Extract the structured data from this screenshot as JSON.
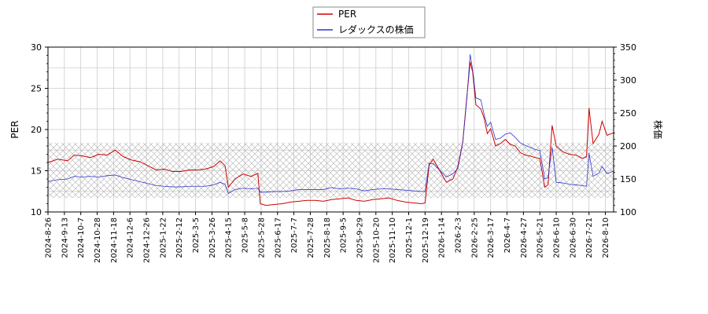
{
  "chart_data": {
    "type": "line",
    "title": "",
    "legend": {
      "placement": "top-center",
      "entries": [
        {
          "label": "PER",
          "color": "#cc0000"
        },
        {
          "label": "レダックスの株価",
          "color": "#3333cc"
        }
      ]
    },
    "y_left": {
      "label": "PER",
      "range": [
        10,
        30
      ],
      "ticks": [
        10,
        15,
        20,
        25,
        30
      ]
    },
    "y_right": {
      "label": "株価",
      "range": [
        100,
        350
      ],
      "ticks": [
        100,
        150,
        200,
        250,
        300,
        350
      ]
    },
    "x_ticks": [
      "2024-8-26",
      "2024-9-13",
      "2024-10-7",
      "2024-10-28",
      "2024-11-18",
      "2024-12-6",
      "2024-12-26",
      "2025-1-22",
      "2025-2-12",
      "2025-3-5",
      "2025-3-26",
      "2025-4-15",
      "2025-5-8",
      "2025-5-28",
      "2025-6-17",
      "2025-7-7",
      "2025-7-28",
      "2025-8-18",
      "2025-9-5",
      "2025-9-29",
      "2025-10-20",
      "2025-11-10",
      "2025-12-1",
      "2025-12-19",
      "2026-1-14",
      "2026-2-3",
      "2026-2-25",
      "2026-3-17",
      "2026-4-7",
      "2026-4-27",
      "2026-5-21",
      "2026-6-10",
      "2026-6-30",
      "2026-7-21",
      "2026-8-10"
    ],
    "grid": true,
    "band": {
      "y_from": 11.7,
      "y_to": 18.4,
      "pattern": "crosshatch",
      "color": "#b0b0b0"
    },
    "series": [
      {
        "name": "PER",
        "color": "#cc0000",
        "axis": "left",
        "points": [
          [
            0,
            16.0
          ],
          [
            0.6,
            16.4
          ],
          [
            1.2,
            16.2
          ],
          [
            1.6,
            16.9
          ],
          [
            2.1,
            16.8
          ],
          [
            2.6,
            16.6
          ],
          [
            3.1,
            17.0
          ],
          [
            3.6,
            16.9
          ],
          [
            4.1,
            17.5
          ],
          [
            4.6,
            16.7
          ],
          [
            5.1,
            16.3
          ],
          [
            5.6,
            16.1
          ],
          [
            6.1,
            15.6
          ],
          [
            6.6,
            15.1
          ],
          [
            7.1,
            15.2
          ],
          [
            7.6,
            14.9
          ],
          [
            8.1,
            14.9
          ],
          [
            8.6,
            15.1
          ],
          [
            9.1,
            15.1
          ],
          [
            9.6,
            15.2
          ],
          [
            10.1,
            15.5
          ],
          [
            10.5,
            16.2
          ],
          [
            10.8,
            15.6
          ],
          [
            11.0,
            13.0
          ],
          [
            11.4,
            14.0
          ],
          [
            11.9,
            14.6
          ],
          [
            12.4,
            14.3
          ],
          [
            12.8,
            14.7
          ],
          [
            12.95,
            11.0
          ],
          [
            13.3,
            10.8
          ],
          [
            13.8,
            10.9
          ],
          [
            14.3,
            11.0
          ],
          [
            14.8,
            11.2
          ],
          [
            15.3,
            11.3
          ],
          [
            15.8,
            11.4
          ],
          [
            16.3,
            11.4
          ],
          [
            16.8,
            11.3
          ],
          [
            17.3,
            11.5
          ],
          [
            17.8,
            11.6
          ],
          [
            18.3,
            11.7
          ],
          [
            18.8,
            11.4
          ],
          [
            19.3,
            11.3
          ],
          [
            19.8,
            11.5
          ],
          [
            20.3,
            11.6
          ],
          [
            20.8,
            11.7
          ],
          [
            21.3,
            11.4
          ],
          [
            21.8,
            11.2
          ],
          [
            22.3,
            11.1
          ],
          [
            22.8,
            11.0
          ],
          [
            23.0,
            11.1
          ],
          [
            23.25,
            15.7
          ],
          [
            23.5,
            16.4
          ],
          [
            23.9,
            15.0
          ],
          [
            24.3,
            13.6
          ],
          [
            24.7,
            14.0
          ],
          [
            25.0,
            15.5
          ],
          [
            25.3,
            18.5
          ],
          [
            25.55,
            24.0
          ],
          [
            25.75,
            28.2
          ],
          [
            25.9,
            27.0
          ],
          [
            26.1,
            23.0
          ],
          [
            26.4,
            22.5
          ],
          [
            26.6,
            21.4
          ],
          [
            26.8,
            19.5
          ],
          [
            27.0,
            20.1
          ],
          [
            27.3,
            18.0
          ],
          [
            27.6,
            18.3
          ],
          [
            27.9,
            18.8
          ],
          [
            28.2,
            18.2
          ],
          [
            28.5,
            18.0
          ],
          [
            28.8,
            17.2
          ],
          [
            29.1,
            16.9
          ],
          [
            29.4,
            16.8
          ],
          [
            29.7,
            16.6
          ],
          [
            30.0,
            16.5
          ],
          [
            30.3,
            13.0
          ],
          [
            30.5,
            13.3
          ],
          [
            30.75,
            20.5
          ],
          [
            31.0,
            18.0
          ],
          [
            31.4,
            17.3
          ],
          [
            31.8,
            17.0
          ],
          [
            32.2,
            16.9
          ],
          [
            32.6,
            16.5
          ],
          [
            32.85,
            16.7
          ],
          [
            33.0,
            22.6
          ],
          [
            33.25,
            18.3
          ],
          [
            33.6,
            19.4
          ],
          [
            33.8,
            21.0
          ],
          [
            34.1,
            19.3
          ],
          [
            34.5,
            19.6
          ],
          [
            34.9,
            20.2
          ],
          [
            35.2,
            20.3
          ],
          [
            35.4,
            19.4
          ],
          [
            35.55,
            19.3
          ]
        ]
      },
      {
        "name": "レダックスの株価",
        "color": "#3333cc",
        "axis": "right",
        "points": [
          [
            0,
            146
          ],
          [
            0.6,
            149
          ],
          [
            1.2,
            150
          ],
          [
            1.6,
            154
          ],
          [
            2.1,
            153
          ],
          [
            2.6,
            154
          ],
          [
            3.1,
            153
          ],
          [
            3.6,
            155
          ],
          [
            4.1,
            156
          ],
          [
            4.6,
            152
          ],
          [
            5.1,
            149
          ],
          [
            5.6,
            146
          ],
          [
            6.1,
            143
          ],
          [
            6.6,
            140
          ],
          [
            7.1,
            139
          ],
          [
            7.6,
            138
          ],
          [
            8.1,
            138
          ],
          [
            8.6,
            139
          ],
          [
            9.1,
            139
          ],
          [
            9.6,
            139
          ],
          [
            10.1,
            141
          ],
          [
            10.5,
            145
          ],
          [
            10.8,
            142
          ],
          [
            11.0,
            128
          ],
          [
            11.4,
            134
          ],
          [
            11.9,
            136
          ],
          [
            12.4,
            135
          ],
          [
            12.8,
            136
          ],
          [
            12.95,
            130
          ],
          [
            13.3,
            130
          ],
          [
            13.8,
            131
          ],
          [
            14.3,
            131
          ],
          [
            14.8,
            132
          ],
          [
            15.3,
            134
          ],
          [
            15.8,
            134
          ],
          [
            16.3,
            134
          ],
          [
            16.8,
            134
          ],
          [
            17.3,
            137
          ],
          [
            17.8,
            135
          ],
          [
            18.3,
            136
          ],
          [
            18.8,
            135
          ],
          [
            19.3,
            132
          ],
          [
            19.8,
            134
          ],
          [
            20.3,
            135
          ],
          [
            20.8,
            135
          ],
          [
            21.3,
            134
          ],
          [
            21.8,
            133
          ],
          [
            22.3,
            132
          ],
          [
            22.8,
            131
          ],
          [
            23.0,
            131
          ],
          [
            23.25,
            174
          ],
          [
            23.5,
            173
          ],
          [
            23.9,
            163
          ],
          [
            24.3,
            153
          ],
          [
            24.7,
            158
          ],
          [
            25.0,
            166
          ],
          [
            25.3,
            205
          ],
          [
            25.55,
            272
          ],
          [
            25.75,
            339
          ],
          [
            25.9,
            316
          ],
          [
            26.1,
            273
          ],
          [
            26.4,
            270
          ],
          [
            26.6,
            248
          ],
          [
            26.8,
            230
          ],
          [
            27.0,
            236
          ],
          [
            27.3,
            210
          ],
          [
            27.6,
            212
          ],
          [
            27.9,
            218
          ],
          [
            28.2,
            220
          ],
          [
            28.5,
            213
          ],
          [
            28.8,
            205
          ],
          [
            29.1,
            201
          ],
          [
            29.4,
            198
          ],
          [
            29.7,
            195
          ],
          [
            30.0,
            193
          ],
          [
            30.3,
            150
          ],
          [
            30.5,
            152
          ],
          [
            30.75,
            198
          ],
          [
            31.0,
            145
          ],
          [
            31.4,
            144
          ],
          [
            31.8,
            142
          ],
          [
            32.2,
            141
          ],
          [
            32.6,
            140
          ],
          [
            32.85,
            139
          ],
          [
            33.0,
            189
          ],
          [
            33.25,
            154
          ],
          [
            33.6,
            159
          ],
          [
            33.8,
            169
          ],
          [
            34.1,
            158
          ],
          [
            34.5,
            162
          ],
          [
            34.9,
            165
          ],
          [
            35.2,
            167
          ],
          [
            35.4,
            162
          ],
          [
            35.55,
            159
          ]
        ]
      }
    ]
  }
}
